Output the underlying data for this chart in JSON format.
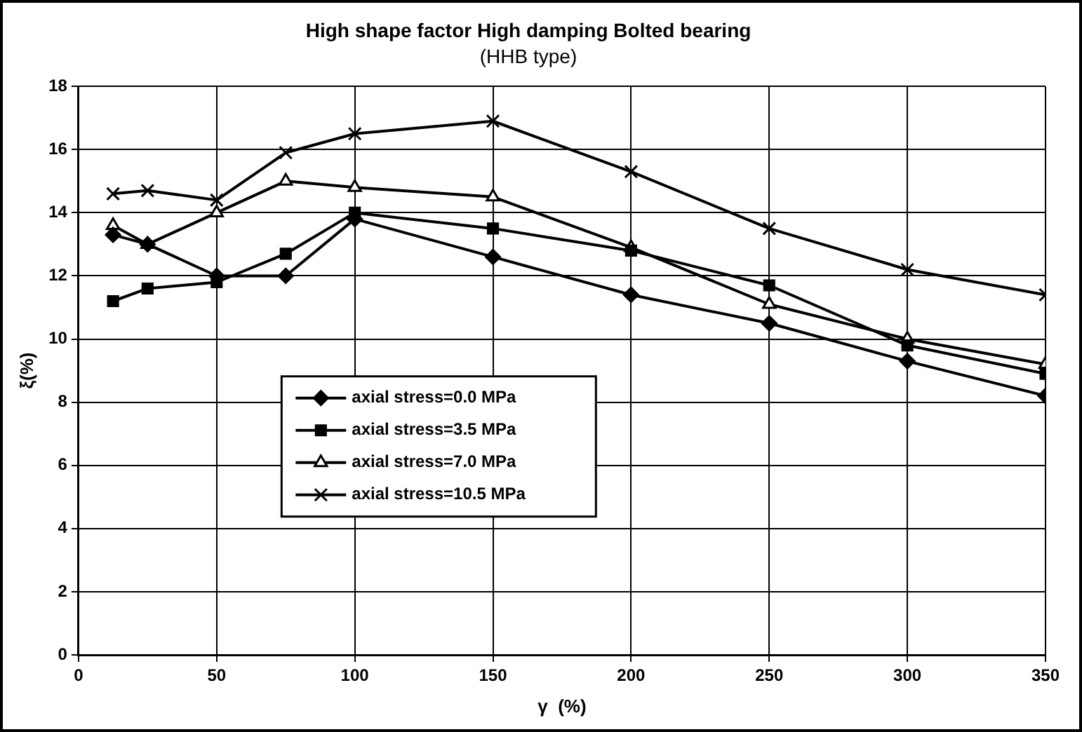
{
  "chart_data": {
    "type": "line",
    "title": "High shape factor High damping Bolted bearing",
    "subtitle": "(HHB type)",
    "xlabel": "γ  (%)",
    "ylabel": "ξ(%)",
    "x": [
      12.5,
      25,
      50,
      75,
      100,
      150,
      200,
      250,
      300,
      350
    ],
    "xlim": [
      0,
      350
    ],
    "xticks": [
      0,
      50,
      100,
      150,
      200,
      250,
      300,
      350
    ],
    "ylim": [
      0,
      18
    ],
    "yticks": [
      0,
      2,
      4,
      6,
      8,
      10,
      12,
      14,
      16,
      18
    ],
    "grid": true,
    "legend": "left",
    "line_style": "solid",
    "series": [
      {
        "name": "axial stress=0.0 MPa",
        "color": "#000000",
        "marker": "diamond",
        "values": [
          13.3,
          13.0,
          12.0,
          12.0,
          13.8,
          12.6,
          11.4,
          10.5,
          9.3,
          8.2
        ]
      },
      {
        "name": "axial stress=3.5 MPa",
        "color": "#000000",
        "marker": "square",
        "values": [
          11.2,
          11.6,
          11.8,
          12.7,
          14.0,
          13.5,
          12.8,
          11.7,
          9.8,
          8.9
        ]
      },
      {
        "name": "axial stress=7.0 MPa",
        "color": "#000000",
        "marker": "triangle",
        "values": [
          13.6,
          13.0,
          14.0,
          15.0,
          14.8,
          14.5,
          12.9,
          11.1,
          10.0,
          9.2
        ]
      },
      {
        "name": "axial stress=10.5 MPa",
        "color": "#000000",
        "marker": "cross",
        "values": [
          14.6,
          14.7,
          14.4,
          15.9,
          16.5,
          16.9,
          15.3,
          13.5,
          12.2,
          11.4
        ]
      }
    ]
  }
}
